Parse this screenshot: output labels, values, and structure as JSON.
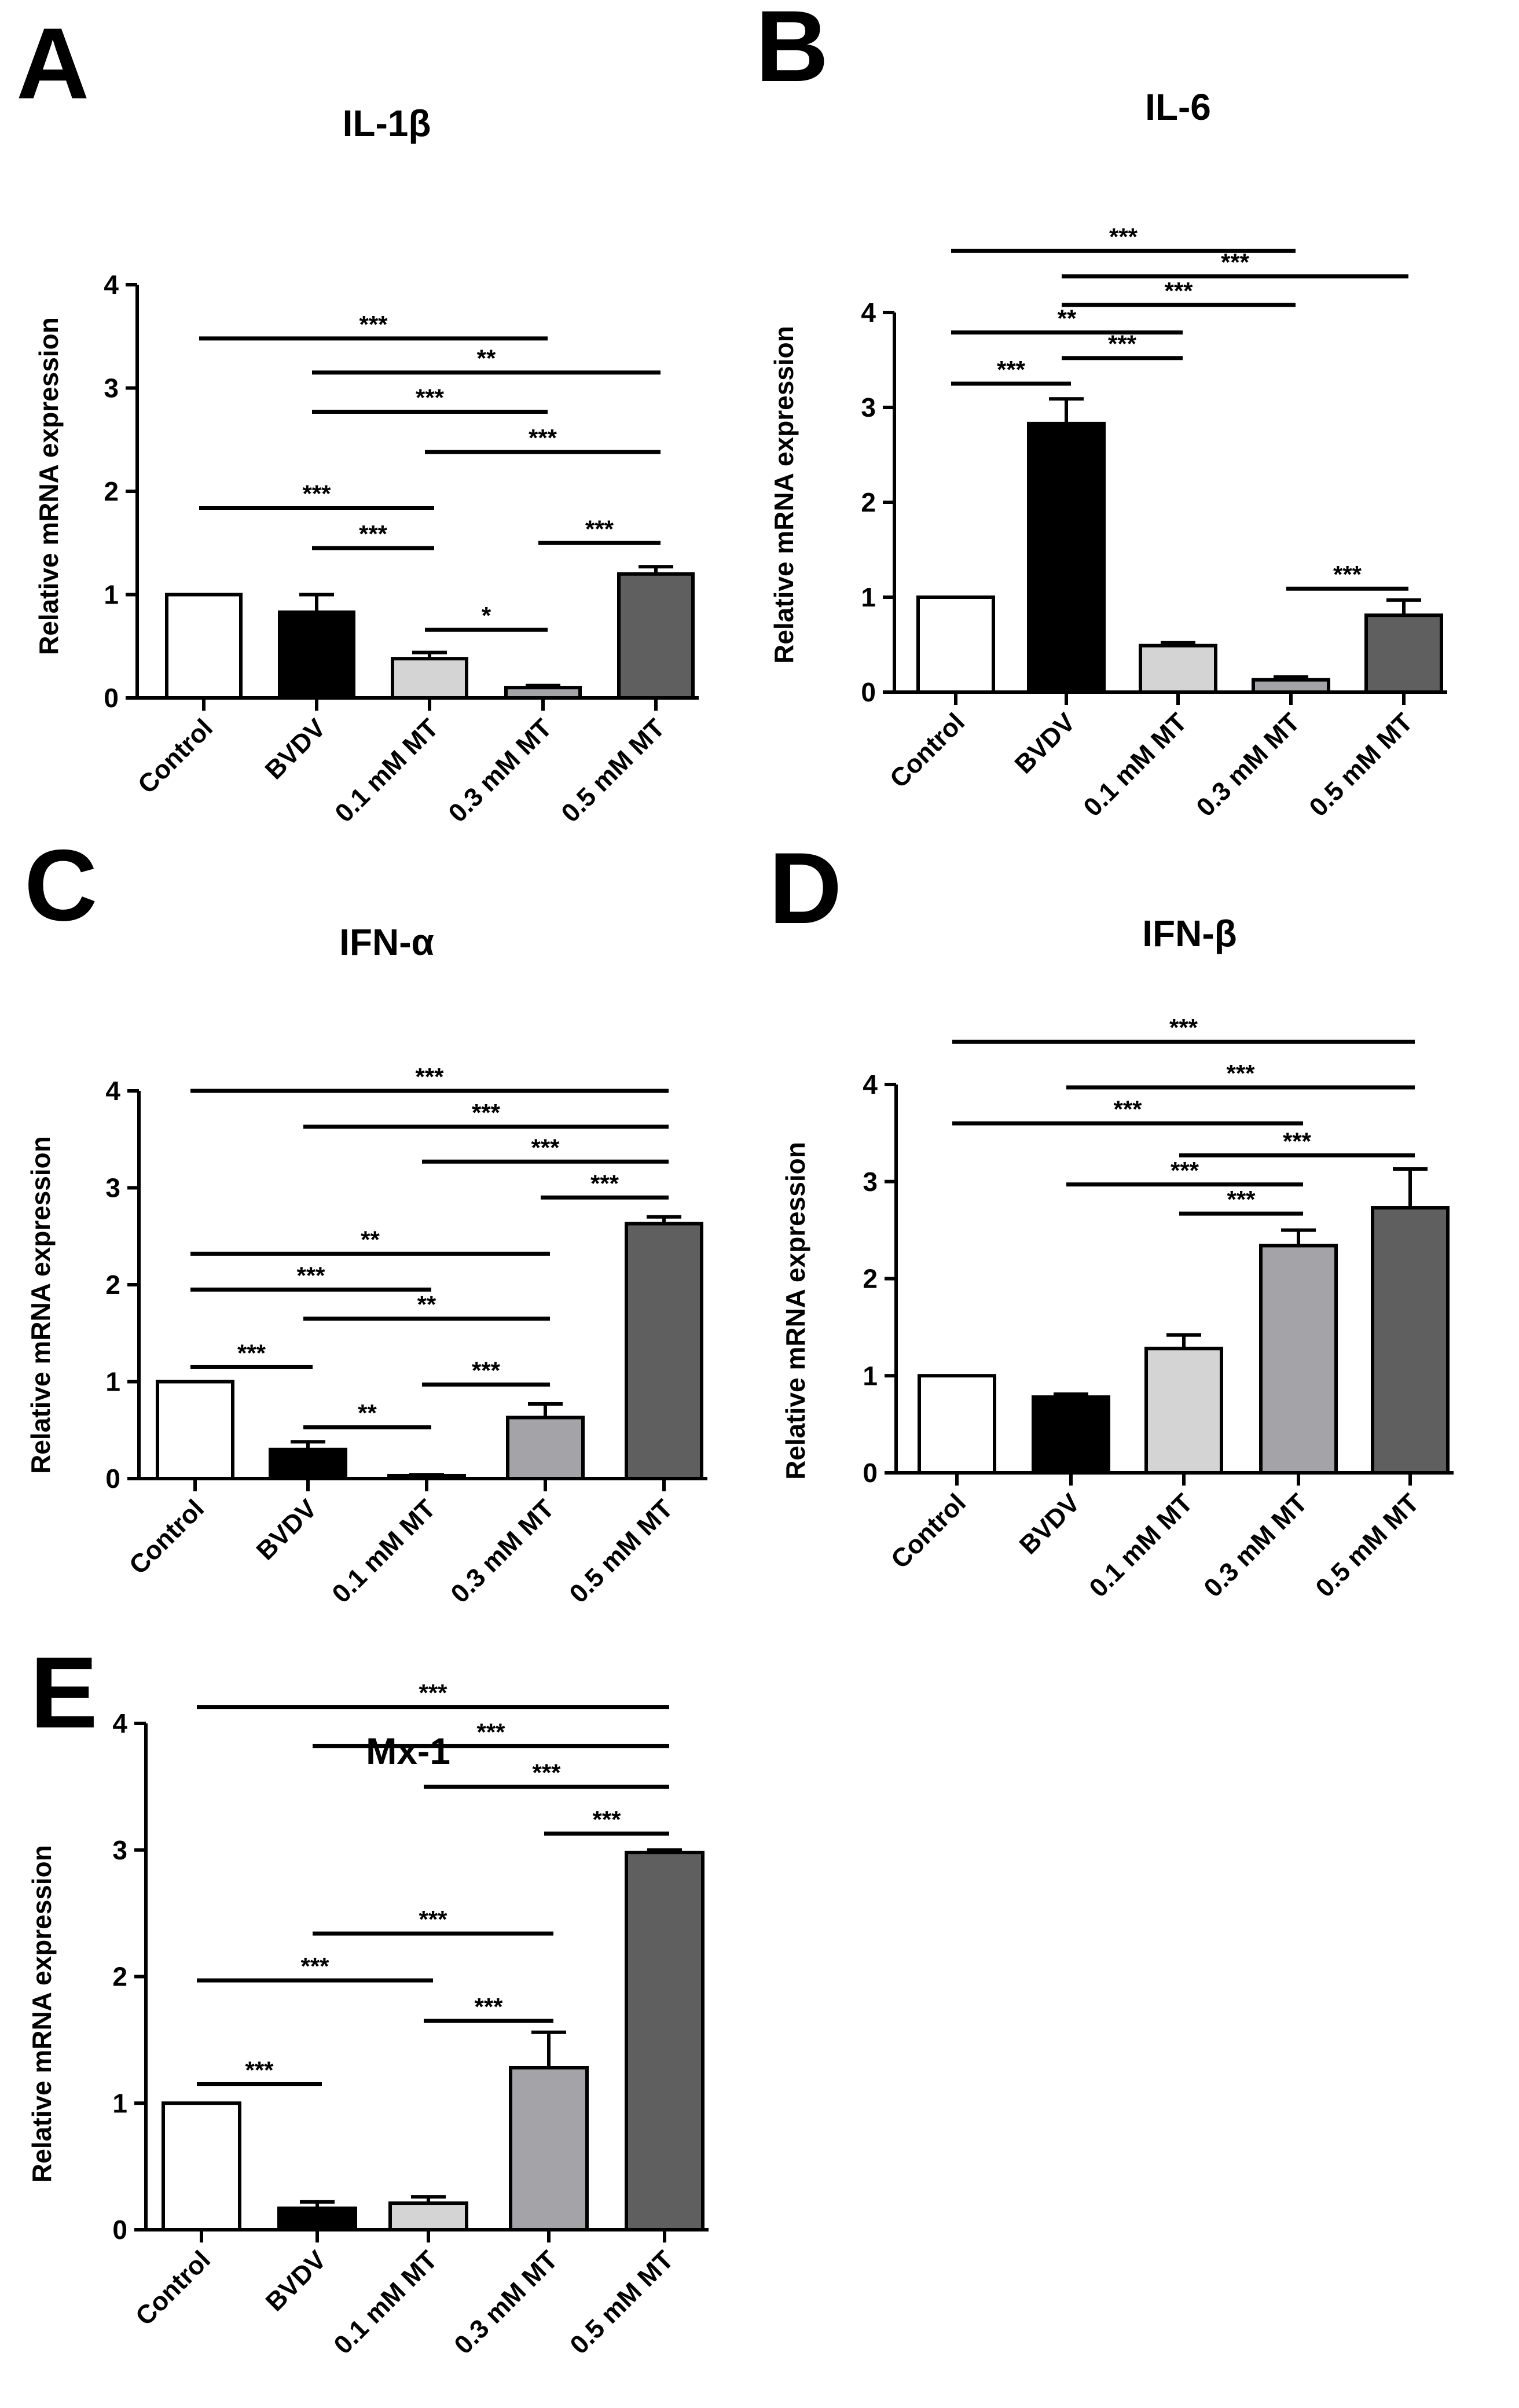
{
  "figure": {
    "bar_colors": [
      "#ffffff",
      "#000000",
      "#d4d4d4",
      "#a3a3a8",
      "#5f5f5f"
    ],
    "axis_color": "#000000"
  },
  "chart_data": [
    {
      "panel": "A",
      "type": "bar",
      "title": "IL-1β",
      "ylabel": "Relative  mRNA expression",
      "xlabel": "",
      "ylim": [
        0,
        4
      ],
      "yticks": [
        "0",
        "1",
        "2",
        "3",
        "4"
      ],
      "categories": [
        "Control",
        "BVDV",
        "0.1 mM MT",
        "0.3 mM MT",
        "0.5 mM MT"
      ],
      "values": [
        1.0,
        0.83,
        0.38,
        0.1,
        1.2
      ],
      "errors": [
        0,
        0.17,
        0.06,
        0.02,
        0.07
      ],
      "significance": [
        {
          "from": 0,
          "to": 3,
          "level": 3.48,
          "label": "***"
        },
        {
          "from": 1,
          "to": 4,
          "level": 3.15,
          "label": "**"
        },
        {
          "from": 1,
          "to": 3,
          "level": 2.77,
          "label": "***"
        },
        {
          "from": 2,
          "to": 4,
          "level": 2.38,
          "label": "***"
        },
        {
          "from": 0,
          "to": 2,
          "level": 1.84,
          "label": "***"
        },
        {
          "from": 1,
          "to": 2,
          "level": 1.45,
          "label": "***"
        },
        {
          "from": 3,
          "to": 4,
          "level": 1.5,
          "label": "***"
        },
        {
          "from": 2,
          "to": 3,
          "level": 0.66,
          "label": "*"
        }
      ]
    },
    {
      "panel": "B",
      "type": "bar",
      "title": "IL-6",
      "ylabel": "Relative mRNA expression",
      "xlabel": "",
      "ylim": [
        0,
        4
      ],
      "yticks": [
        "0",
        "1",
        "2",
        "3",
        "4"
      ],
      "categories": [
        "Control",
        "BVDV",
        "0.1 mM MT",
        "0.3 mM MT",
        "0.5 mM MT"
      ],
      "values": [
        1.0,
        2.83,
        0.49,
        0.13,
        0.81
      ],
      "errors": [
        0,
        0.26,
        0.03,
        0.03,
        0.16
      ],
      "significance": [
        {
          "from": 0,
          "to": 3,
          "level": 4.65,
          "label": "***"
        },
        {
          "from": 1,
          "to": 4,
          "level": 4.38,
          "label": "***"
        },
        {
          "from": 1,
          "to": 3,
          "level": 4.08,
          "label": "***"
        },
        {
          "from": 0,
          "to": 2,
          "level": 3.79,
          "label": "**"
        },
        {
          "from": 1,
          "to": 2,
          "level": 3.52,
          "label": "***"
        },
        {
          "from": 0,
          "to": 1,
          "level": 3.25,
          "label": "***"
        },
        {
          "from": 3,
          "to": 4,
          "level": 1.09,
          "label": "***"
        }
      ]
    },
    {
      "panel": "C",
      "type": "bar",
      "title": "IFN-α",
      "ylabel": "Relative  mRNA expression",
      "xlabel": "",
      "ylim": [
        0,
        4
      ],
      "yticks": [
        "0",
        "1",
        "2",
        "3",
        "4"
      ],
      "categories": [
        "Control",
        "BVDV",
        "0.1 mM MT",
        "0.3 mM MT",
        "0.5 mM MT"
      ],
      "values": [
        1.0,
        0.3,
        0.03,
        0.63,
        2.63
      ],
      "errors": [
        0,
        0.08,
        0.01,
        0.14,
        0.07
      ],
      "significance": [
        {
          "from": 0,
          "to": 4,
          "level": 4.0,
          "label": "***"
        },
        {
          "from": 1,
          "to": 4,
          "level": 3.63,
          "label": "***"
        },
        {
          "from": 2,
          "to": 4,
          "level": 3.27,
          "label": "***"
        },
        {
          "from": 3,
          "to": 4,
          "level": 2.9,
          "label": "***"
        },
        {
          "from": 0,
          "to": 3,
          "level": 2.32,
          "label": "**"
        },
        {
          "from": 0,
          "to": 2,
          "level": 1.95,
          "label": "***"
        },
        {
          "from": 1,
          "to": 3,
          "level": 1.65,
          "label": "**"
        },
        {
          "from": 0,
          "to": 1,
          "level": 1.15,
          "label": "***"
        },
        {
          "from": 2,
          "to": 3,
          "level": 0.97,
          "label": "***"
        },
        {
          "from": 1,
          "to": 2,
          "level": 0.53,
          "label": "**"
        }
      ]
    },
    {
      "panel": "D",
      "type": "bar",
      "title": "IFN-β",
      "ylabel": "Relative mRNA expression",
      "xlabel": "",
      "ylim": [
        0,
        4
      ],
      "yticks": [
        "0",
        "1",
        "2",
        "3",
        "4"
      ],
      "categories": [
        "Control",
        "BVDV",
        "0.1 mM MT",
        "0.3 mM MT",
        "0.5 mM MT"
      ],
      "values": [
        1.0,
        0.78,
        1.28,
        2.34,
        2.73
      ],
      "errors": [
        0,
        0.03,
        0.14,
        0.16,
        0.4
      ],
      "significance": [
        {
          "from": 0,
          "to": 4,
          "level": 4.44,
          "label": "***"
        },
        {
          "from": 1,
          "to": 4,
          "level": 3.97,
          "label": "***"
        },
        {
          "from": 0,
          "to": 3,
          "level": 3.6,
          "label": "***"
        },
        {
          "from": 2,
          "to": 4,
          "level": 3.27,
          "label": "***"
        },
        {
          "from": 1,
          "to": 3,
          "level": 2.97,
          "label": "***"
        },
        {
          "from": 2,
          "to": 3,
          "level": 2.67,
          "label": "***"
        }
      ]
    },
    {
      "panel": "E",
      "type": "bar",
      "title": "Mx-1",
      "ylabel": "Relative  mRNA expression",
      "xlabel": "",
      "ylim": [
        0,
        4
      ],
      "yticks": [
        "0",
        "1",
        "2",
        "3",
        "4"
      ],
      "categories": [
        "Control",
        "BVDV",
        "0.1 mM MT",
        "0.3 mM MT",
        "0.5 mM MT"
      ],
      "values": [
        1.0,
        0.17,
        0.21,
        1.28,
        2.98
      ],
      "errors": [
        0,
        0.05,
        0.05,
        0.28,
        0.02
      ],
      "significance": [
        {
          "from": 0,
          "to": 4,
          "level": 4.13,
          "label": "***"
        },
        {
          "from": 1,
          "to": 4,
          "level": 3.82,
          "label": "***"
        },
        {
          "from": 2,
          "to": 4,
          "level": 3.5,
          "label": "***"
        },
        {
          "from": 3,
          "to": 4,
          "level": 3.13,
          "label": "***"
        },
        {
          "from": 1,
          "to": 3,
          "level": 2.34,
          "label": "***"
        },
        {
          "from": 0,
          "to": 2,
          "level": 1.97,
          "label": "***"
        },
        {
          "from": 2,
          "to": 3,
          "level": 1.65,
          "label": "***"
        },
        {
          "from": 0,
          "to": 1,
          "level": 1.15,
          "label": "***"
        }
      ]
    }
  ]
}
